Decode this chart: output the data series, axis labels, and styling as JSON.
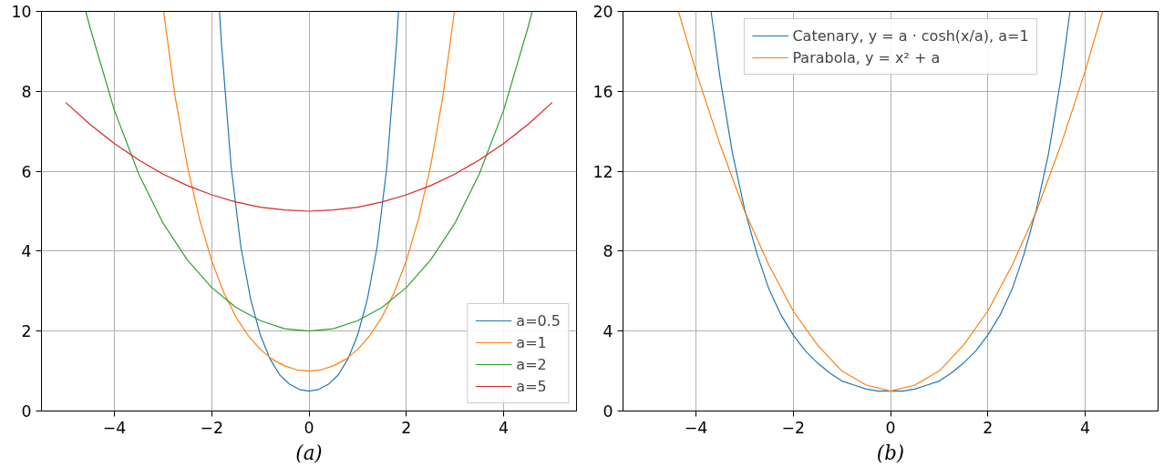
{
  "chart_data": [
    {
      "type": "line",
      "annotations": [
        "(a)"
      ],
      "xlim": [
        -5.5,
        5.5
      ],
      "ylim": [
        0,
        10
      ],
      "xticks": [
        -4,
        -2,
        0,
        2,
        4
      ],
      "yticks": [
        0,
        2,
        4,
        6,
        8,
        10
      ],
      "grid": true,
      "legend": "bottom right",
      "marker": "none",
      "line_style": "solid",
      "series": [
        {
          "name": "a=0.5",
          "color": "#1f77b4",
          "x": [
            -1.84,
            -1.8,
            -1.6,
            -1.4,
            -1.2,
            -1.0,
            -0.8,
            -0.6,
            -0.4,
            -0.2,
            0,
            0.2,
            0.4,
            0.6,
            0.8,
            1.0,
            1.2,
            1.4,
            1.6,
            1.8,
            1.84
          ],
          "values": [
            10,
            9.2,
            6.1,
            4.1,
            2.8,
            1.9,
            1.3,
            0.9,
            0.67,
            0.54,
            0.5,
            0.54,
            0.67,
            0.9,
            1.3,
            1.9,
            2.8,
            4.1,
            6.1,
            9.2,
            10
          ]
        },
        {
          "name": "a=1",
          "color": "#ff7f0e",
          "x": [
            -2.99,
            -2.75,
            -2.5,
            -2.25,
            -2.0,
            -1.75,
            -1.5,
            -1.25,
            -1.0,
            -0.75,
            -0.5,
            -0.25,
            0,
            0.25,
            0.5,
            0.75,
            1.0,
            1.25,
            1.5,
            1.75,
            2.0,
            2.25,
            2.5,
            2.75,
            2.99
          ],
          "values": [
            10,
            7.85,
            6.13,
            4.8,
            3.76,
            2.96,
            2.35,
            1.89,
            1.54,
            1.29,
            1.13,
            1.03,
            1,
            1.03,
            1.13,
            1.29,
            1.54,
            1.89,
            2.35,
            2.96,
            3.76,
            4.8,
            6.13,
            7.85,
            10
          ]
        },
        {
          "name": "a=2",
          "color": "#2ca02c",
          "x": [
            -4.59,
            -4.5,
            -4.0,
            -3.5,
            -3.0,
            -2.5,
            -2.0,
            -1.5,
            -1.0,
            -0.5,
            0,
            0.5,
            1.0,
            1.5,
            2.0,
            2.5,
            3.0,
            3.5,
            4.0,
            4.5,
            4.59
          ],
          "values": [
            10,
            9.59,
            7.52,
            5.93,
            4.7,
            3.78,
            3.09,
            2.59,
            2.26,
            2.06,
            2,
            2.06,
            2.26,
            2.59,
            3.09,
            3.78,
            4.7,
            5.93,
            7.52,
            9.59,
            10
          ]
        },
        {
          "name": "a=5",
          "color": "#d62728",
          "x": [
            -5.0,
            -4.5,
            -4.0,
            -3.5,
            -3.0,
            -2.5,
            -2.0,
            -1.5,
            -1.0,
            -0.5,
            0,
            0.5,
            1.0,
            1.5,
            2.0,
            2.5,
            3.0,
            3.5,
            4.0,
            4.5,
            5.0
          ],
          "values": [
            7.72,
            7.17,
            6.69,
            6.28,
            5.93,
            5.64,
            5.41,
            5.23,
            5.1,
            5.03,
            5,
            5.03,
            5.1,
            5.23,
            5.41,
            5.64,
            5.93,
            6.28,
            6.69,
            7.17,
            7.72
          ]
        }
      ]
    },
    {
      "type": "line",
      "annotations": [
        "(b)"
      ],
      "xlim": [
        -5.5,
        5.5
      ],
      "ylim": [
        0,
        20
      ],
      "xticks": [
        -4,
        -2,
        0,
        2,
        4
      ],
      "yticks": [
        0,
        4,
        8,
        12,
        16,
        20
      ],
      "grid": true,
      "legend": "top",
      "marker": "none",
      "line_style": "solid",
      "series": [
        {
          "name": "Catenary, y = a · cosh(x/a), a=1",
          "color": "#1f77b4",
          "x": [
            -3.69,
            -3.5,
            -3.25,
            -3.0,
            -2.75,
            -2.5,
            -2.25,
            -2.0,
            -1.75,
            -1.5,
            -1.25,
            -1.0,
            -0.75,
            -0.5,
            -0.25,
            0,
            0.25,
            0.5,
            0.75,
            1.0,
            1.25,
            1.5,
            1.75,
            2.0,
            2.25,
            2.5,
            2.75,
            3.0,
            3.25,
            3.5,
            3.69
          ],
          "values": [
            20,
            16.6,
            12.9,
            10.1,
            7.9,
            6.1,
            4.8,
            3.8,
            3.0,
            2.4,
            1.9,
            1.5,
            1.3,
            1.1,
            1.0,
            1,
            1.0,
            1.1,
            1.3,
            1.5,
            1.9,
            2.4,
            3.0,
            3.8,
            4.8,
            6.1,
            7.9,
            10.1,
            12.9,
            16.6,
            20
          ]
        },
        {
          "name": "Parabola, y = x² + a",
          "color": "#ff7f0e",
          "x": [
            -4.36,
            -4.0,
            -3.5,
            -3.0,
            -2.5,
            -2.0,
            -1.5,
            -1.0,
            -0.5,
            0,
            0.5,
            1.0,
            1.5,
            2.0,
            2.5,
            3.0,
            3.5,
            4.0,
            4.36
          ],
          "values": [
            20,
            17,
            13.3,
            10,
            7.3,
            5,
            3.3,
            2,
            1.3,
            1,
            1.3,
            2,
            3.3,
            5,
            7.3,
            10,
            13.3,
            17,
            20
          ]
        }
      ]
    }
  ]
}
